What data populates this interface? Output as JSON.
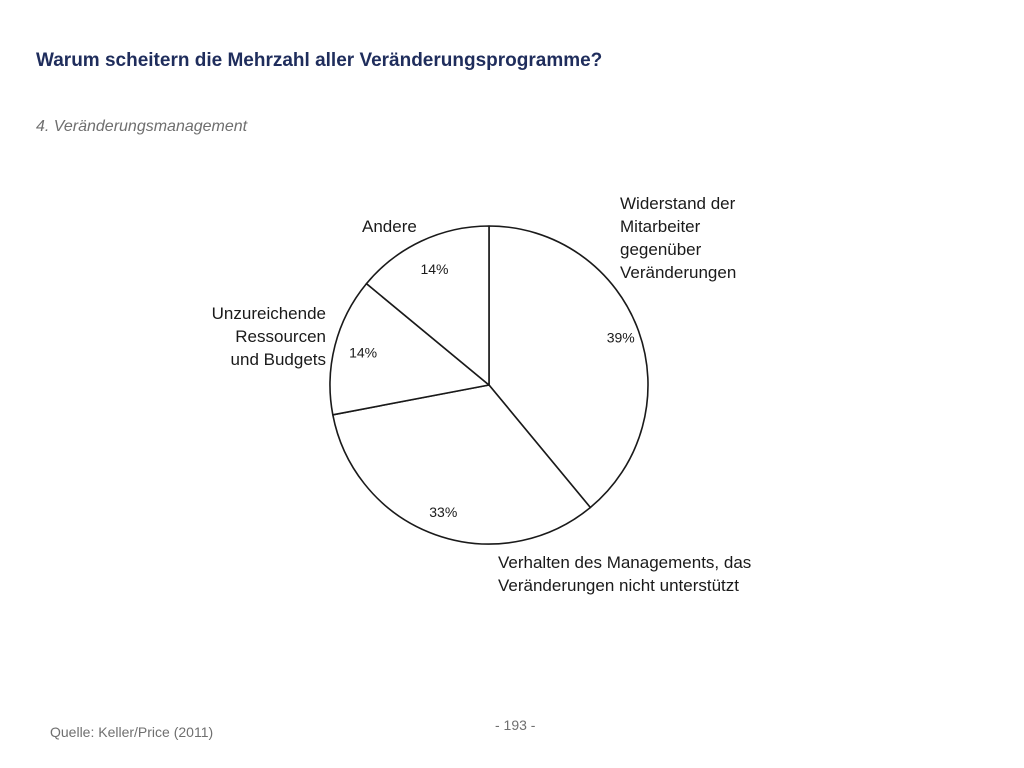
{
  "header": {
    "title": "Warum scheitern die Mehrzahl aller Veränderungsprogramme?",
    "subtitle": "4. Veränderungsmanagement"
  },
  "chart_data": {
    "type": "pie",
    "title": "",
    "slices": [
      {
        "label_lines": [
          "Widerstand der",
          "Mitarbeiter",
          "gegenüber",
          "Veränderungen"
        ],
        "value": 39,
        "value_label": "39%"
      },
      {
        "label_lines": [
          "Verhalten des Managements, das",
          "Veränderungen nicht unterstützt"
        ],
        "value": 33,
        "value_label": "33%"
      },
      {
        "label_lines": [
          "Unzureichende",
          "Ressourcen",
          "und Budgets"
        ],
        "value": 14,
        "value_label": "14%"
      },
      {
        "label_lines": [
          "Andere"
        ],
        "value": 14,
        "value_label": "14%"
      }
    ],
    "start_angle": "12 o'clock",
    "direction": "clockwise",
    "slice_color": "#ffffff",
    "outline_color": "#1a1a1a"
  },
  "footer": {
    "source": "Quelle: Keller/Price (2011)",
    "page": "- 193 -"
  }
}
